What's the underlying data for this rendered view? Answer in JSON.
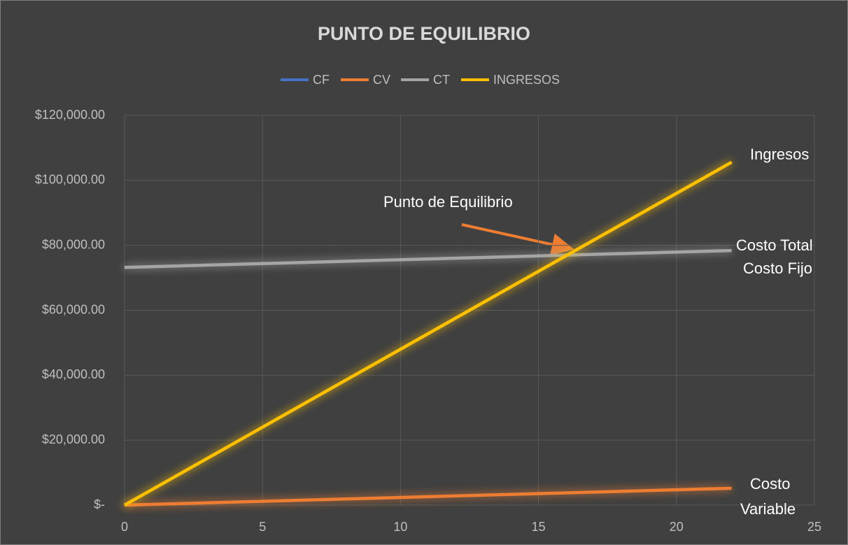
{
  "chart_data": {
    "type": "line",
    "title": "PUNTO DE EQUILIBRIO",
    "x": [
      0,
      22
    ],
    "series": [
      {
        "name": "CF",
        "color": "#4472c4",
        "values": [
          73200,
          73200
        ]
      },
      {
        "name": "CV",
        "color": "#ed7d31",
        "values": [
          0,
          5200
        ]
      },
      {
        "name": "CT",
        "color": "#a5a5a5",
        "values": [
          73200,
          78400
        ]
      },
      {
        "name": "INGRESOS",
        "color": "#ffc000",
        "values": [
          0,
          105600
        ]
      }
    ],
    "xlim": [
      0,
      25
    ],
    "xticks": [
      0,
      5,
      10,
      15,
      20,
      25
    ],
    "ylim": [
      0,
      120000
    ],
    "yticks": [
      {
        "value": 0,
        "label": "$-"
      },
      {
        "value": 20000,
        "label": "$20,000.00"
      },
      {
        "value": 40000,
        "label": "$40,000.00"
      },
      {
        "value": 60000,
        "label": "$60,000.00"
      },
      {
        "value": 80000,
        "label": "$80,000.00"
      },
      {
        "value": 100000,
        "label": "$100,000.00"
      },
      {
        "value": 120000,
        "label": "$120,000.00"
      }
    ],
    "grid": true,
    "legend": "top",
    "annotations": [
      "Ingresos",
      "Punto de Equilibrio",
      "Costo Total",
      "Costo Fijo",
      "Costo",
      "Variable"
    ]
  }
}
